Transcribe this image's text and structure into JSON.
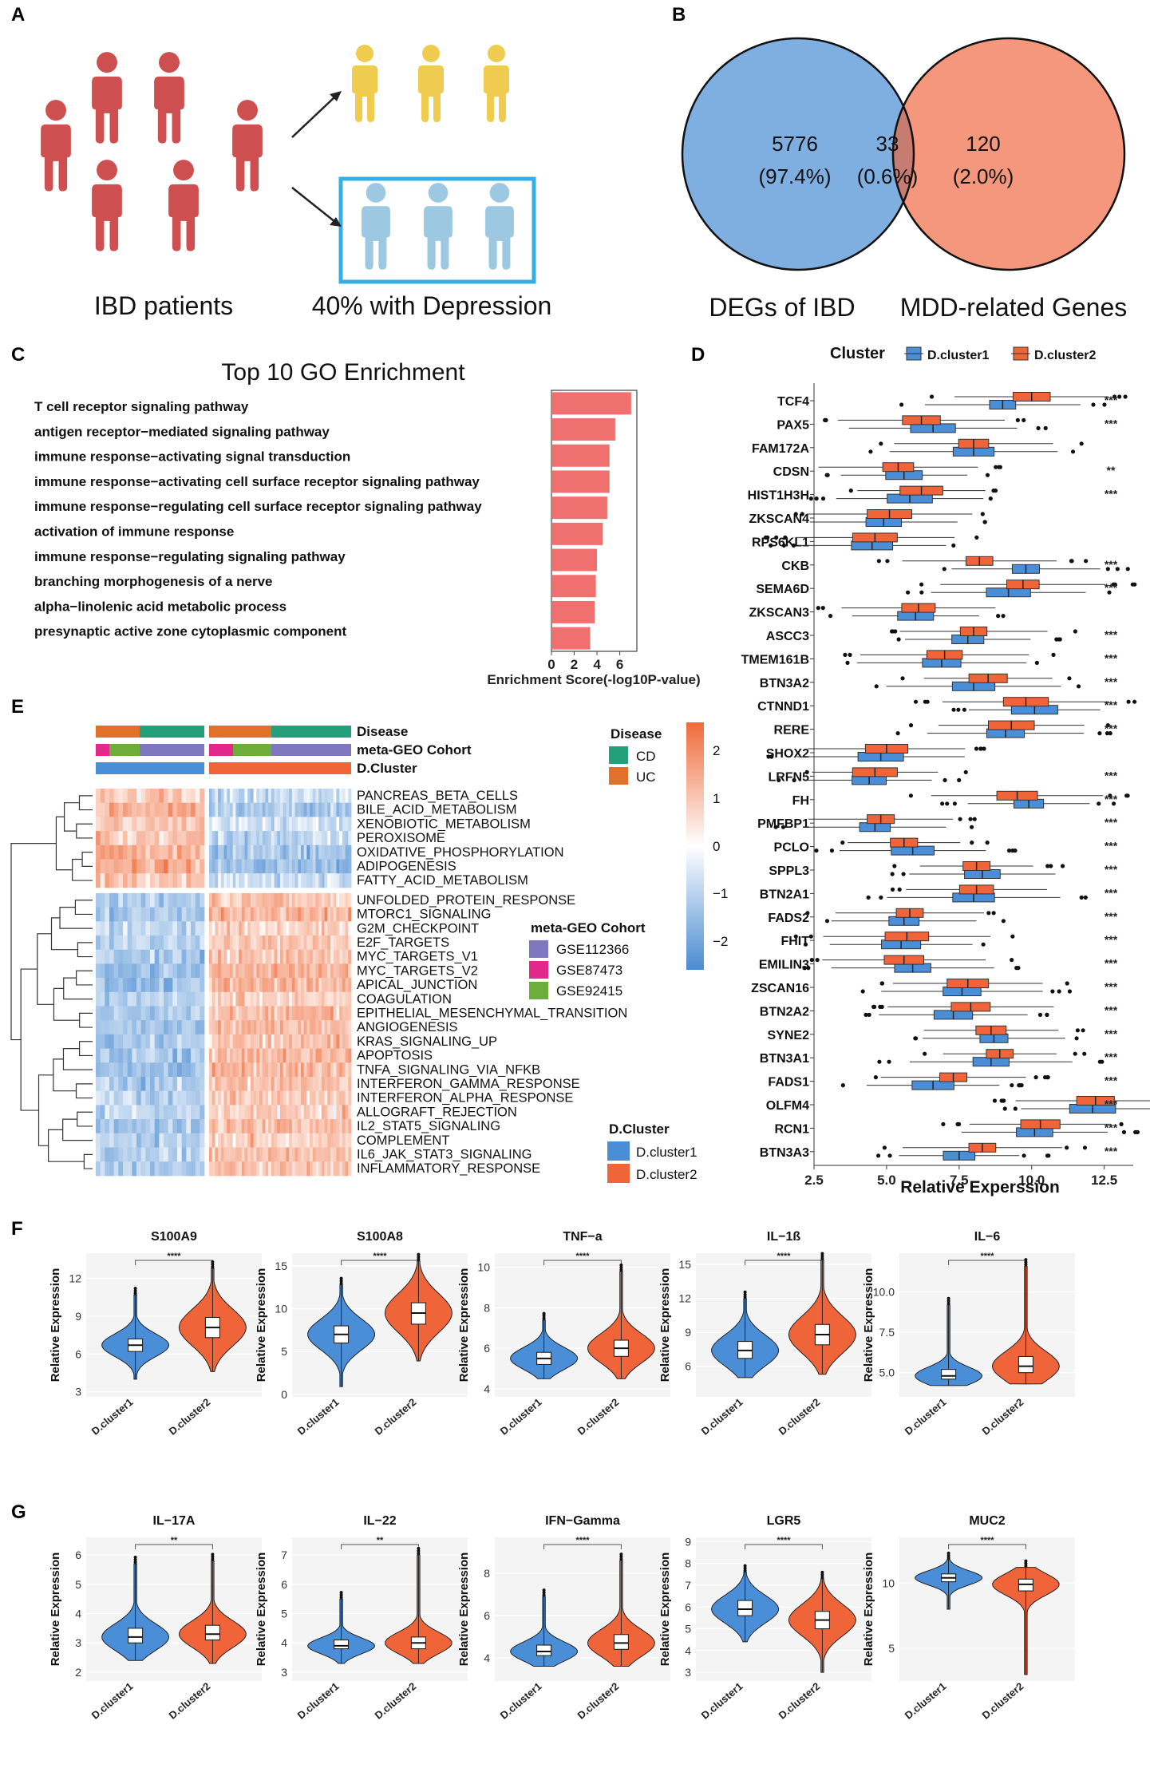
{
  "panel_labels": [
    "A",
    "B",
    "C",
    "D",
    "E",
    "F",
    "G"
  ],
  "colors": {
    "red": "#CD4F4F",
    "yellow": "#EFCB4F",
    "lightblue": "#9CC8E2",
    "cyan": "#33AFE4",
    "venn_blue": "#7FAEE0",
    "venn_orange": "#F4977D",
    "venn_overlap": "#C77C72",
    "bar": "#F07070",
    "cluster1": "#4A8ED8",
    "cluster2": "#F0643A",
    "cd": "#23A07A",
    "uc": "#E0702A",
    "gse112366": "#8078BE",
    "gse87473": "#E2288A",
    "gse92415": "#6CAD3C"
  },
  "panel_a": {
    "left_label": "IBD patients",
    "right_label": "40% with Depression"
  },
  "panel_b": {
    "left_value": "5776",
    "left_pct": "(97.4%)",
    "mid_value": "33",
    "mid_pct": "(0.6%)",
    "right_value": "120",
    "right_pct": "(2.0%)",
    "left_label": "DEGs of IBD",
    "right_label": "MDD-related Genes"
  },
  "chart_data": [
    {
      "panel": "C",
      "type": "bar",
      "title": "Top 10 GO Enrichment",
      "xlabel": "Enrichment Score(-log10P-value)",
      "xticks": [
        "0",
        "2",
        "4",
        "6"
      ],
      "xlim": [
        0,
        7.5
      ],
      "categories": [
        "T cell receptor signaling pathway",
        "antigen receptor−mediated signaling pathway",
        "immune response−activating signal transduction",
        "immune response−activating cell surface receptor signaling pathway",
        "immune response−regulating cell surface receptor signaling pathway",
        "activation of immune response",
        "immune response−regulating signaling pathway",
        "branching morphogenesis of a nerve",
        "alpha−linolenic acid metabolic process",
        "presynaptic active zone cytoplasmic component"
      ],
      "values": [
        7.0,
        5.6,
        5.1,
        5.1,
        4.9,
        4.5,
        4.0,
        3.9,
        3.8,
        3.4
      ]
    },
    {
      "panel": "D",
      "type": "box",
      "legend_title": "Cluster",
      "legend": [
        "D.cluster1",
        "D.cluster2"
      ],
      "xlabel": "Relative Experssion",
      "xticks": [
        "2.5",
        "5.0",
        "7.5",
        "10.0",
        "12.5"
      ],
      "xlim": [
        2.5,
        13.5
      ],
      "genes": [
        "TCF4",
        "PAX5",
        "FAM172A",
        "CDSN",
        "HIST1H3H",
        "ZKSCAN4",
        "RPS6KL1",
        "CKB",
        "SEMA6D",
        "ZKSCAN3",
        "ASCC3",
        "TMEM161B",
        "BTN3A2",
        "CTNND1",
        "RERE",
        "SHOX2",
        "LRFN5",
        "FH",
        "PMFBP1",
        "PCLO",
        "SPPL3",
        "BTN2A1",
        "FADS2",
        "FHIT",
        "EMILIN3",
        "ZSCAN16",
        "BTN2A2",
        "SYNE2",
        "BTN3A1",
        "FADS1",
        "OLFM4",
        "RCN1",
        "BTN3A3"
      ],
      "cluster1_median": [
        9.0,
        6.6,
        8.0,
        5.6,
        5.8,
        4.9,
        4.5,
        9.8,
        9.2,
        6.0,
        7.8,
        6.9,
        8.0,
        10.1,
        9.1,
        4.8,
        4.4,
        9.9,
        4.6,
        5.9,
        8.3,
        8.0,
        5.6,
        5.5,
        5.9,
        7.6,
        7.3,
        8.7,
        8.6,
        6.6,
        12.1,
        10.1,
        7.5
      ],
      "cluster2_median": [
        10.0,
        6.2,
        8.0,
        5.4,
        6.2,
        5.1,
        4.6,
        8.2,
        9.7,
        6.1,
        8.0,
        7.0,
        8.5,
        9.8,
        9.3,
        5.0,
        4.6,
        9.5,
        4.8,
        5.6,
        8.1,
        8.1,
        5.8,
        5.7,
        5.6,
        7.8,
        7.9,
        8.6,
        8.9,
        7.3,
        12.2,
        10.3,
        8.3
      ],
      "significance": [
        "***",
        "***",
        "",
        "**",
        "***",
        "",
        "",
        "***",
        "***",
        "",
        "***",
        "***",
        "***",
        "***",
        "***",
        "",
        "***",
        "***",
        "***",
        "***",
        "***",
        "***",
        "***",
        "***",
        "***",
        "***",
        "***",
        "***",
        "***",
        "***",
        "***",
        "***",
        "***"
      ]
    },
    {
      "panel": "E",
      "type": "heatmap",
      "annotation_labels": [
        "Disease",
        "meta-GEO Cohort",
        "D.Cluster"
      ],
      "pathways_cluster_a": [
        "PANCREAS_BETA_CELLS",
        "BILE_ACID_METABOLISM",
        "XENOBIOTIC_METABOLISM",
        "PEROXISOME",
        "OXIDATIVE_PHOSPHORYLATION",
        "ADIPOGENESIS",
        "FATTY_ACID_METABOLISM"
      ],
      "pathways_cluster_b": [
        "UNFOLDED_PROTEIN_RESPONSE",
        "MTORC1_SIGNALING",
        "G2M_CHECKPOINT",
        "E2F_TARGETS",
        "MYC_TARGETS_V1",
        "MYC_TARGETS_V2",
        "APICAL_JUNCTION",
        "COAGULATION",
        "EPITHELIAL_MESENCHYMAL_TRANSITION",
        "ANGIOGENESIS",
        "KRAS_SIGNALING_UP",
        "APOPTOSIS",
        "TNFA_SIGNALING_VIA_NFKB",
        "INTERFERON_GAMMA_RESPONSE",
        "INTERFERON_ALPHA_RESPONSE",
        "ALLOGRAFT_REJECTION",
        "IL2_STAT5_SIGNALING",
        "COMPLEMENT",
        "IL6_JAK_STAT3_SIGNALING",
        "INFLAMMATORY_RESPONSE"
      ],
      "legend_disease_title": "Disease",
      "legend_disease": [
        "CD",
        "UC"
      ],
      "legend_cohort_title": "meta-GEO Cohort",
      "legend_cohort": [
        "GSE112366",
        "GSE87473",
        "GSE92415"
      ],
      "legend_cluster_title": "D.Cluster",
      "legend_cluster": [
        "D.cluster1",
        "D.cluster2"
      ],
      "scale_ticks": [
        "2",
        "1",
        "0",
        "−1",
        "−2"
      ]
    },
    {
      "panel": "F",
      "type": "violin",
      "ylabel": "Relative Expression",
      "categories": [
        "D.cluster1",
        "D.cluster2"
      ],
      "plots": [
        {
          "title": "S100A9",
          "sig": "****",
          "yticks": [
            "3",
            "6",
            "9",
            "12"
          ],
          "ylim": [
            2.6,
            14.0
          ],
          "median": [
            6.7,
            8.1
          ],
          "q1": [
            6.2,
            7.3
          ],
          "q3": [
            7.2,
            8.9
          ],
          "min": [
            4.0,
            4.6
          ],
          "max": [
            10.7,
            12.8
          ]
        },
        {
          "title": "S100A8",
          "sig": "****",
          "yticks": [
            "0",
            "5",
            "10",
            "15"
          ],
          "ylim": [
            -0.3,
            16.5
          ],
          "median": [
            7.0,
            9.5
          ],
          "q1": [
            6.0,
            8.2
          ],
          "q3": [
            8.0,
            10.7
          ],
          "min": [
            0.9,
            3.9
          ],
          "max": [
            12.8,
            15.6
          ]
        },
        {
          "title": "TNF−a",
          "sig": "****",
          "yticks": [
            "4",
            "6",
            "8",
            "10"
          ],
          "ylim": [
            3.6,
            10.7
          ],
          "median": [
            5.5,
            6.0
          ],
          "q1": [
            5.2,
            5.6
          ],
          "q3": [
            5.8,
            6.4
          ],
          "min": [
            4.5,
            4.5
          ],
          "max": [
            7.4,
            9.8
          ]
        },
        {
          "title": "IL−1ß",
          "sig": "****",
          "yticks": [
            "6",
            "9",
            "12",
            "15"
          ],
          "ylim": [
            3.3,
            16.0
          ],
          "median": [
            7.4,
            8.8
          ],
          "q1": [
            6.7,
            7.9
          ],
          "q3": [
            8.2,
            9.7
          ],
          "min": [
            5.0,
            5.3
          ],
          "max": [
            12.0,
            15.4
          ]
        },
        {
          "title": "IL−6",
          "sig": "****",
          "yticks": [
            "5.0",
            "7.5",
            "10.0"
          ],
          "ylim": [
            3.5,
            12.4
          ],
          "median": [
            4.8,
            5.4
          ],
          "q1": [
            4.6,
            5.0
          ],
          "q3": [
            5.2,
            6.0
          ],
          "min": [
            4.2,
            4.3
          ],
          "max": [
            9.2,
            11.6
          ]
        }
      ]
    },
    {
      "panel": "G",
      "type": "violin",
      "ylabel": "Relative Expression",
      "categories": [
        "D.cluster1",
        "D.cluster2"
      ],
      "plots": [
        {
          "title": "IL−17A",
          "sig": "**",
          "yticks": [
            "2",
            "3",
            "4",
            "5",
            "6"
          ],
          "ylim": [
            1.7,
            6.6
          ],
          "median": [
            3.2,
            3.3
          ],
          "q1": [
            3.0,
            3.1
          ],
          "q3": [
            3.5,
            3.6
          ],
          "min": [
            2.4,
            2.3
          ],
          "max": [
            5.7,
            5.8
          ]
        },
        {
          "title": "IL−22",
          "sig": "**",
          "yticks": [
            "3",
            "4",
            "5",
            "6",
            "7"
          ],
          "ylim": [
            2.7,
            7.6
          ],
          "median": [
            3.9,
            4.0
          ],
          "q1": [
            3.8,
            3.8
          ],
          "q3": [
            4.1,
            4.2
          ],
          "min": [
            3.3,
            3.3
          ],
          "max": [
            5.5,
            7.0
          ]
        },
        {
          "title": "IFN−Gamma",
          "sig": "****",
          "yticks": [
            "4",
            "6",
            "8"
          ],
          "ylim": [
            2.9,
            9.7
          ],
          "median": [
            4.3,
            4.7
          ],
          "q1": [
            4.1,
            4.4
          ],
          "q3": [
            4.6,
            5.1
          ],
          "min": [
            3.6,
            3.6
          ],
          "max": [
            6.9,
            8.6
          ]
        },
        {
          "title": "LGR5",
          "sig": "****",
          "yticks": [
            "3",
            "4",
            "5",
            "6",
            "7",
            "8",
            "9"
          ],
          "ylim": [
            2.6,
            9.2
          ],
          "median": [
            5.9,
            5.4
          ],
          "q1": [
            5.6,
            5.0
          ],
          "q3": [
            6.3,
            5.8
          ],
          "min": [
            4.4,
            3.0
          ],
          "max": [
            7.6,
            7.3
          ]
        },
        {
          "title": "MUC2",
          "sig": "****",
          "yticks": [
            "5",
            "10"
          ],
          "ylim": [
            2.5,
            13.5
          ],
          "median": [
            10.4,
            9.9
          ],
          "q1": [
            10.1,
            9.4
          ],
          "q3": [
            10.7,
            10.3
          ],
          "min": [
            8.0,
            3.0
          ],
          "max": [
            11.8,
            11.2
          ]
        }
      ]
    }
  ]
}
